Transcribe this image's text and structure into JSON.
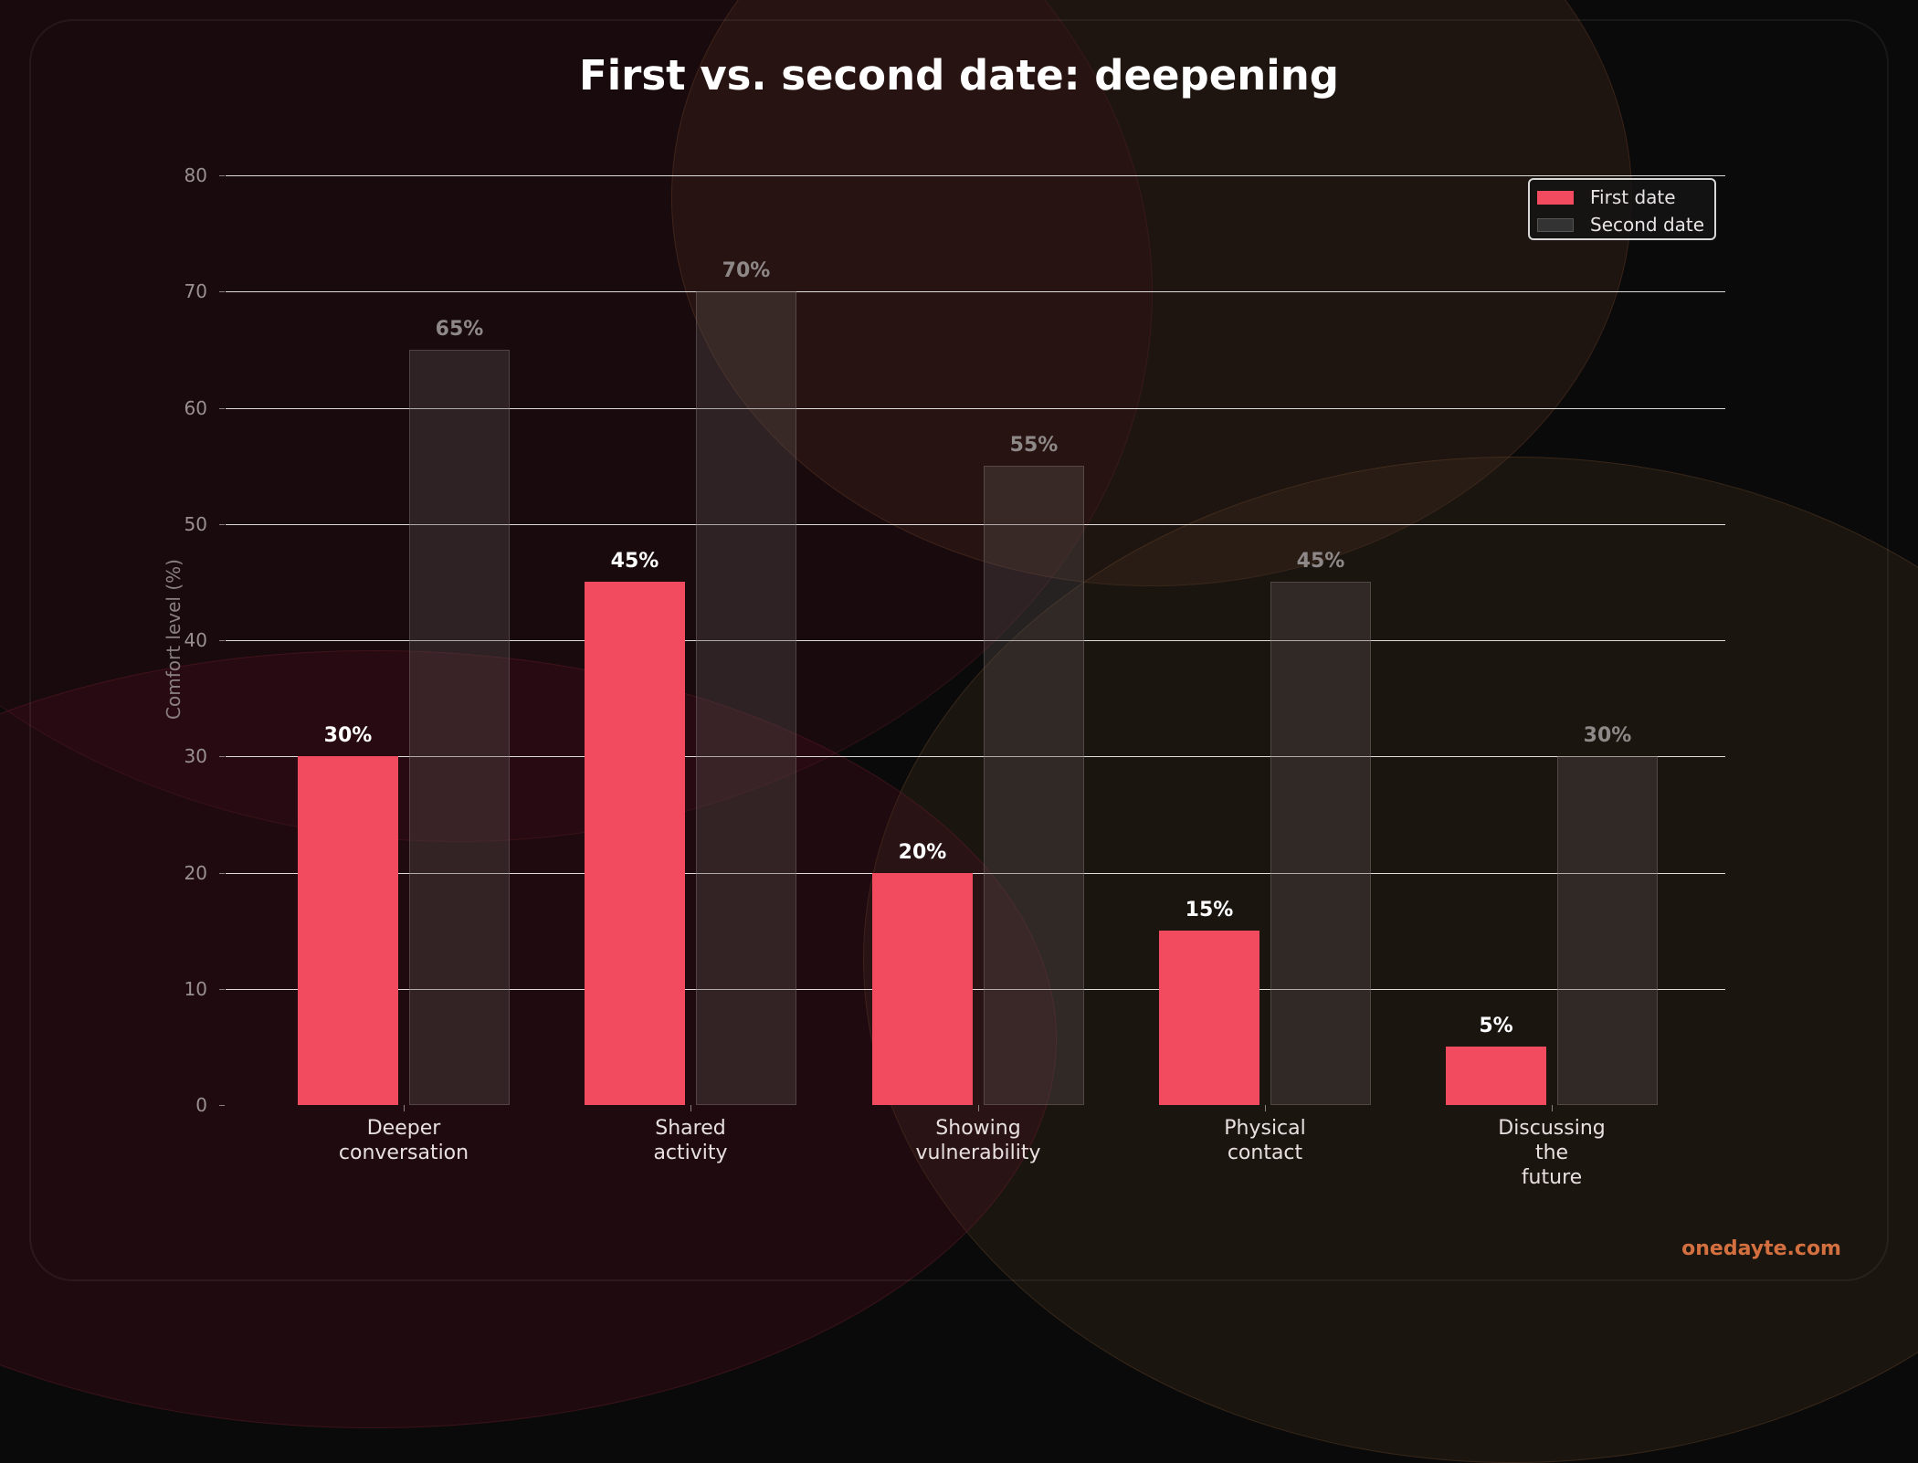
{
  "chart_data": {
    "type": "bar",
    "title": "First vs. second date: deepening",
    "xlabel": "",
    "ylabel": "Comfort level (%)",
    "ylim": [
      0,
      80
    ],
    "yticks": [
      0,
      10,
      20,
      30,
      40,
      50,
      60,
      70,
      80
    ],
    "grid": true,
    "legend_position": "upper right",
    "categories": [
      "Deeper\nconversation",
      "Shared\nactivity",
      "Showing\nvulnerability",
      "Physical\ncontact",
      "Discussing\nthe\nfuture"
    ],
    "series": [
      {
        "name": "First date",
        "color": "#f24a5e",
        "values": [
          30,
          45,
          20,
          15,
          5
        ],
        "labels": [
          "30%",
          "45%",
          "20%",
          "15%",
          "5%"
        ]
      },
      {
        "name": "Second date",
        "color": "#3a3232",
        "values": [
          65,
          70,
          55,
          45,
          30
        ],
        "labels": [
          "65%",
          "70%",
          "55%",
          "45%",
          "30%"
        ]
      }
    ]
  },
  "watermark": "onedayte.com"
}
